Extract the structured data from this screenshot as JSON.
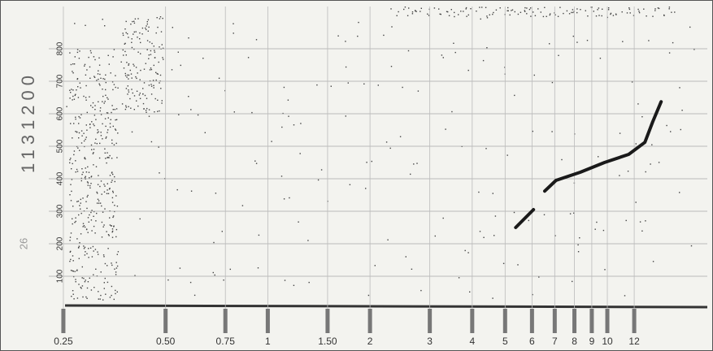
{
  "chart_data": {
    "type": "line",
    "annotations": [
      "1131200",
      "26"
    ],
    "x": [
      5.37,
      6.06,
      null,
      6.54,
      7.06,
      8.32,
      9.81,
      11.56,
      12.9,
      13.6,
      14.4
    ],
    "values": [
      250,
      305,
      null,
      362,
      395,
      420,
      450,
      475,
      512,
      575,
      637
    ],
    "color": "#1a1a1a",
    "xscale": "log",
    "xlim": [
      0.17,
      19.7
    ],
    "xticks": [
      0.25,
      {
        "value": 0.5,
        "label": "0.50"
      },
      0.75,
      1,
      {
        "value": 1.5,
        "label": "1.50"
      },
      2,
      3,
      4,
      5,
      6,
      7,
      8,
      9,
      10,
      12
    ],
    "ylim": [
      0,
      930
    ],
    "yticks": [
      100,
      200,
      300,
      400,
      500,
      600,
      700,
      800
    ],
    "grid": true
  }
}
